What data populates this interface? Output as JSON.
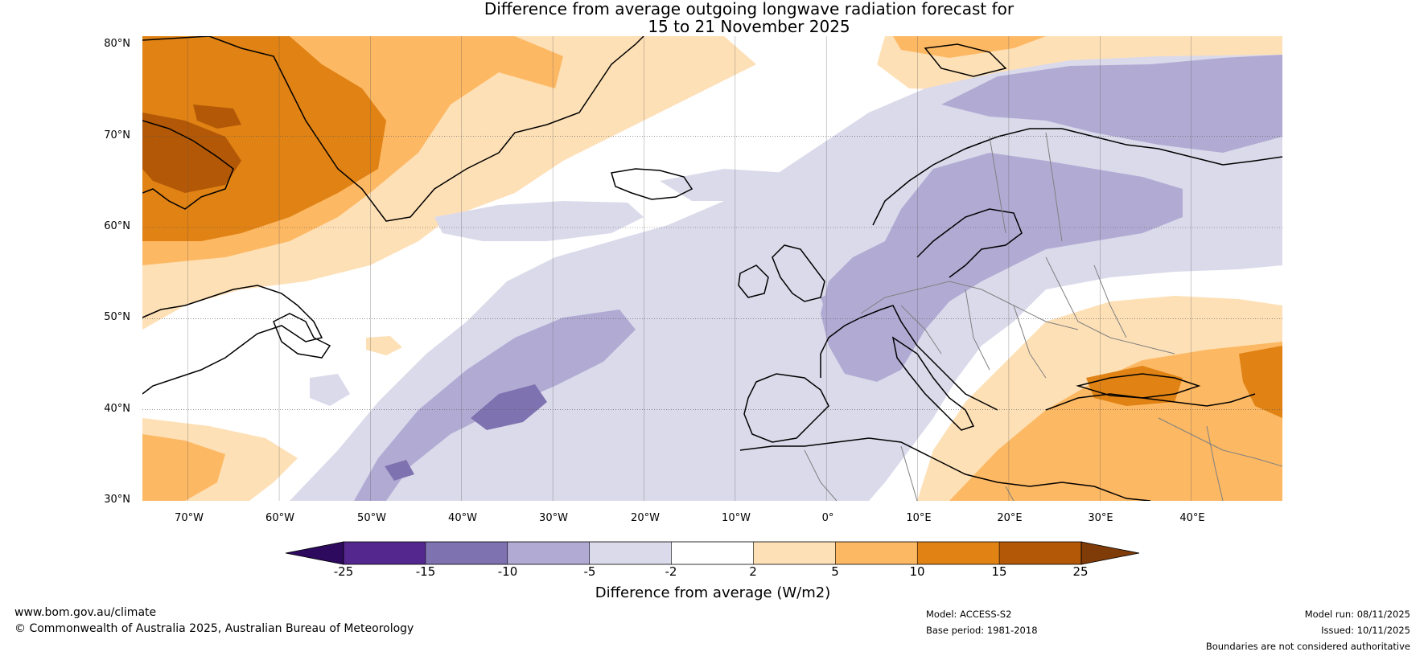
{
  "title": {
    "line1": "Difference from average outgoing longwave radiation forecast for",
    "line2": "15 to 21 November 2025"
  },
  "map": {
    "lat_labels": [
      "80°N",
      "70°N",
      "60°N",
      "50°N",
      "40°N",
      "30°N"
    ],
    "lon_labels": [
      "70°W",
      "60°W",
      "50°W",
      "40°W",
      "30°W",
      "20°W",
      "10°W",
      "0°",
      "10°E",
      "20°E",
      "30°E",
      "40°E"
    ],
    "extent": {
      "lon_min": -75,
      "lon_max": 50,
      "lat_min": 30,
      "lat_max": 81
    }
  },
  "colorbar": {
    "ticks": [
      "-25",
      "-15",
      "-10",
      "-5",
      "-2",
      "2",
      "5",
      "10",
      "15",
      "25"
    ],
    "colors": [
      "#2d0a5e",
      "#54278f",
      "#7f72b0",
      "#b1abd4",
      "#dadaeb",
      "#ffffff",
      "#fee0b6",
      "#fdb863",
      "#e08214",
      "#b35806",
      "#7f3b08"
    ],
    "label": "Difference from average (W/m2)"
  },
  "footer": {
    "website": "www.bom.gov.au/climate",
    "copyright": "© Commonwealth of Australia 2025, Australian Bureau of Meteorology",
    "model": "Model: ACCESS-S2",
    "base_period": "Base period: 1981-2018",
    "model_run": "Model run: 08/11/2025",
    "issued": "Issued: 10/11/2025",
    "disclaimer": "Boundaries are not considered authoritative"
  }
}
